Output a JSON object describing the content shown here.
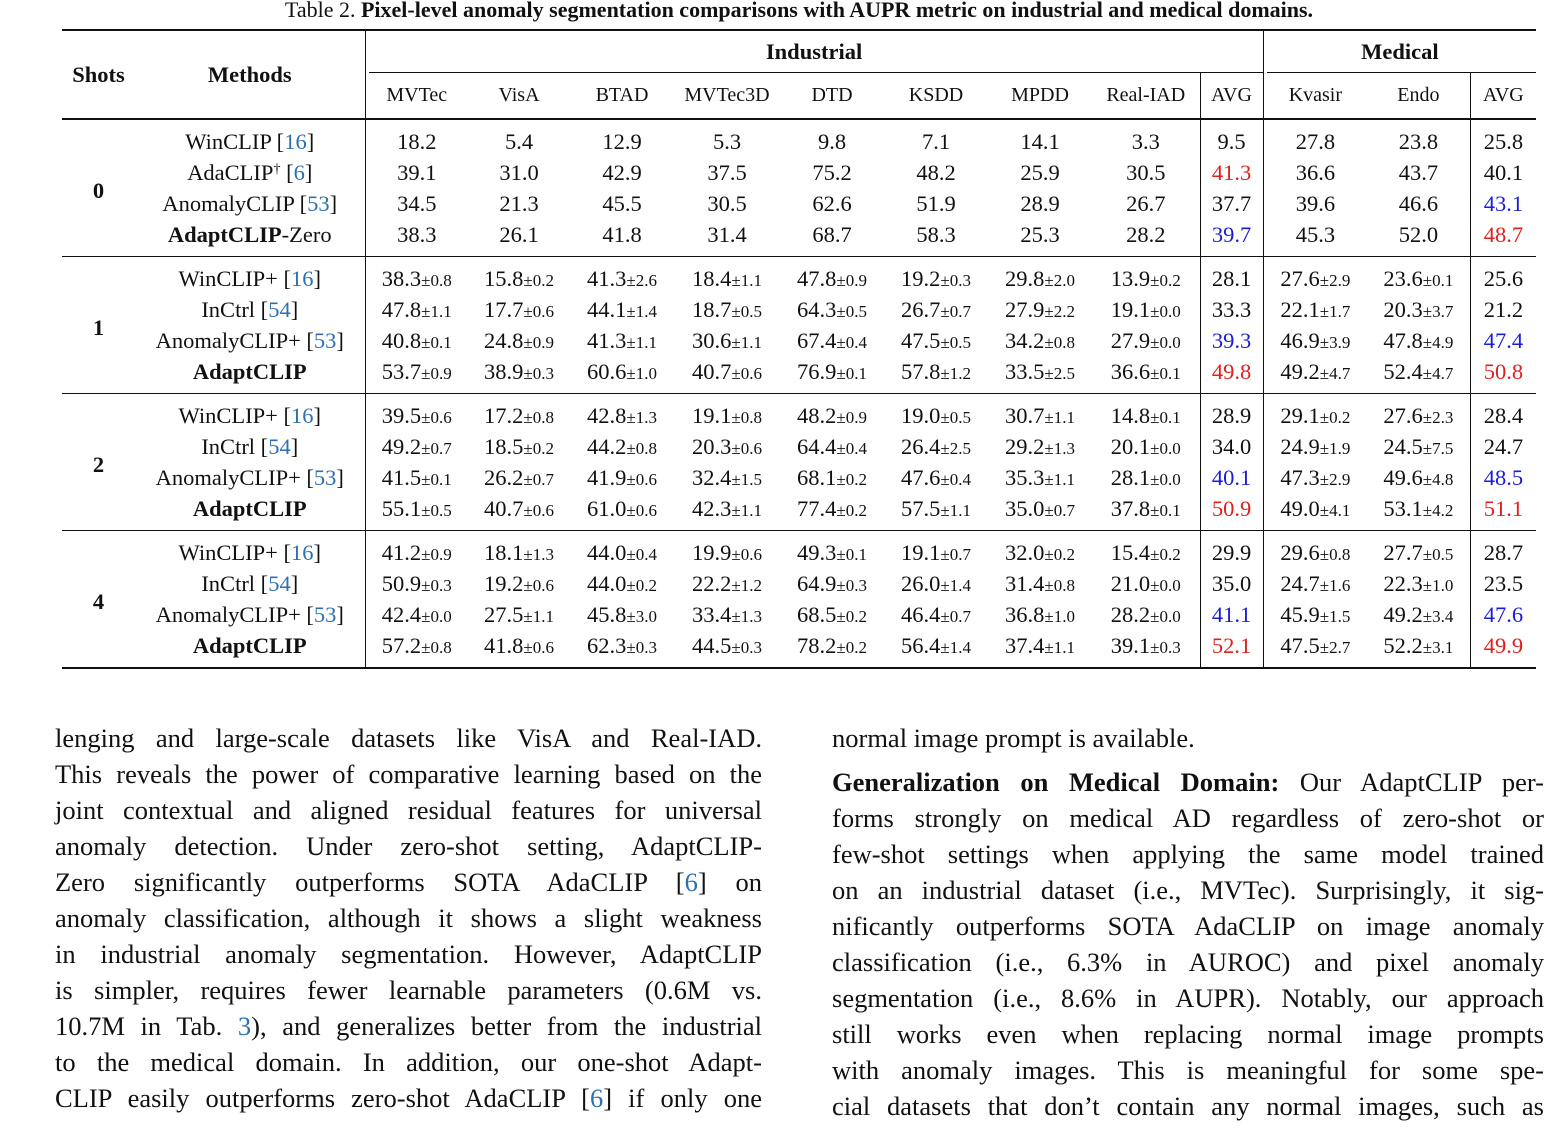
{
  "caption": {
    "label": "Table 2.",
    "title": "Pixel-level anomaly segmentation comparisons with AUPR metric on industrial and medical domains."
  },
  "table": {
    "header": {
      "shots": "Shots",
      "methods": "Methods",
      "groups": [
        {
          "name": "Industrial",
          "columns": [
            "MVTec",
            "VisA",
            "BTAD",
            "MVTec3D",
            "DTD",
            "KSDD",
            "MPDD",
            "Real-IAD",
            "AVG"
          ]
        },
        {
          "name": "Medical",
          "columns": [
            "Kvasir",
            "Endo",
            "AVG"
          ]
        }
      ]
    },
    "blocks": [
      {
        "shots": "0",
        "rows": [
          {
            "method": [
              "WinCLIP [",
              {
                "t": "16",
                "ref": true
              },
              "]"
            ],
            "cells": [
              "18.2",
              "5.4",
              "12.9",
              "5.3",
              "9.8",
              "7.1",
              "14.1",
              "3.3",
              "9.5",
              "27.8",
              "23.8",
              "25.8"
            ]
          },
          {
            "method": [
              "AdaCLIP",
              {
                "t": "†",
                "sup": true
              },
              " [",
              {
                "t": "6",
                "ref": true
              },
              "]"
            ],
            "cells": [
              "39.1",
              "31.0",
              "42.9",
              "37.5",
              "75.2",
              "48.2",
              "25.9",
              "30.5",
              {
                "t": "41.3",
                "color": "#e0201f"
              },
              "36.6",
              "43.7",
              "40.1"
            ]
          },
          {
            "method": [
              "AnomalyCLIP [",
              {
                "t": "53",
                "ref": true
              },
              "]"
            ],
            "cells": [
              "34.5",
              "21.3",
              "45.5",
              "30.5",
              "62.6",
              "51.9",
              "28.9",
              "26.7",
              "37.7",
              "39.6",
              "46.6",
              {
                "t": "43.1",
                "color": "#1c1cd8"
              }
            ]
          },
          {
            "method": [
              {
                "t": "AdaptCLIP",
                "b": true
              },
              "-Zero"
            ],
            "cells": [
              "38.3",
              "26.1",
              "41.8",
              "31.4",
              "68.7",
              "58.3",
              "25.3",
              "28.2",
              {
                "t": "39.7",
                "color": "#1c1cd8"
              },
              "45.3",
              "52.0",
              {
                "t": "48.7",
                "color": "#e0201f"
              }
            ]
          }
        ]
      },
      {
        "shots": "1",
        "rows": [
          {
            "method": [
              "WinCLIP+ [",
              {
                "t": "16",
                "ref": true
              },
              "]"
            ],
            "cells": [
              [
                "38.3",
                "±0.8"
              ],
              [
                "15.8",
                "±0.2"
              ],
              [
                "41.3",
                "±2.6"
              ],
              [
                "18.4",
                "±1.1"
              ],
              [
                "47.8",
                "±0.9"
              ],
              [
                "19.2",
                "±0.3"
              ],
              [
                "29.8",
                "±2.0"
              ],
              [
                "13.9",
                "±0.2"
              ],
              "28.1",
              [
                "27.6",
                "±2.9"
              ],
              [
                "23.6",
                "±0.1"
              ],
              "25.6"
            ]
          },
          {
            "method": [
              "InCtrl [",
              {
                "t": "54",
                "ref": true
              },
              "]"
            ],
            "cells": [
              [
                "47.8",
                "±1.1"
              ],
              [
                "17.7",
                "±0.6"
              ],
              [
                "44.1",
                "±1.4"
              ],
              [
                "18.7",
                "±0.5"
              ],
              [
                "64.3",
                "±0.5"
              ],
              [
                "26.7",
                "±0.7"
              ],
              [
                "27.9",
                "±2.2"
              ],
              [
                "19.1",
                "±0.0"
              ],
              "33.3",
              [
                "22.1",
                "±1.7"
              ],
              [
                "20.3",
                "±3.7"
              ],
              "21.2"
            ]
          },
          {
            "method": [
              "AnomalyCLIP+ [",
              {
                "t": "53",
                "ref": true
              },
              "]"
            ],
            "cells": [
              [
                "40.8",
                "±0.1"
              ],
              [
                "24.8",
                "±0.9"
              ],
              [
                "41.3",
                "±1.1"
              ],
              [
                "30.6",
                "±1.1"
              ],
              [
                "67.4",
                "±0.4"
              ],
              [
                "47.5",
                "±0.5"
              ],
              [
                "34.2",
                "±0.8"
              ],
              [
                "27.9",
                "±0.0"
              ],
              {
                "t": "39.3",
                "color": "#1c1cd8"
              },
              [
                "46.9",
                "±3.9"
              ],
              [
                "47.8",
                "±4.9"
              ],
              {
                "t": "47.4",
                "color": "#1c1cd8"
              }
            ]
          },
          {
            "method": [
              {
                "t": "AdaptCLIP",
                "b": true
              }
            ],
            "cells": [
              [
                "53.7",
                "±0.9"
              ],
              [
                "38.9",
                "±0.3"
              ],
              [
                "60.6",
                "±1.0"
              ],
              [
                "40.7",
                "±0.6"
              ],
              [
                "76.9",
                "±0.1"
              ],
              [
                "57.8",
                "±1.2"
              ],
              [
                "33.5",
                "±2.5"
              ],
              [
                "36.6",
                "±0.1"
              ],
              {
                "t": "49.8",
                "color": "#e0201f"
              },
              [
                "49.2",
                "±4.7"
              ],
              [
                "52.4",
                "±4.7"
              ],
              {
                "t": "50.8",
                "color": "#e0201f"
              }
            ]
          }
        ]
      },
      {
        "shots": "2",
        "rows": [
          {
            "method": [
              "WinCLIP+ [",
              {
                "t": "16",
                "ref": true
              },
              "]"
            ],
            "cells": [
              [
                "39.5",
                "±0.6"
              ],
              [
                "17.2",
                "±0.8"
              ],
              [
                "42.8",
                "±1.3"
              ],
              [
                "19.1",
                "±0.8"
              ],
              [
                "48.2",
                "±0.9"
              ],
              [
                "19.0",
                "±0.5"
              ],
              [
                "30.7",
                "±1.1"
              ],
              [
                "14.8",
                "±0.1"
              ],
              "28.9",
              [
                "29.1",
                "±0.2"
              ],
              [
                "27.6",
                "±2.3"
              ],
              "28.4"
            ]
          },
          {
            "method": [
              "InCtrl [",
              {
                "t": "54",
                "ref": true
              },
              "]"
            ],
            "cells": [
              [
                "49.2",
                "±0.7"
              ],
              [
                "18.5",
                "±0.2"
              ],
              [
                "44.2",
                "±0.8"
              ],
              [
                "20.3",
                "±0.6"
              ],
              [
                "64.4",
                "±0.4"
              ],
              [
                "26.4",
                "±2.5"
              ],
              [
                "29.2",
                "±1.3"
              ],
              [
                "20.1",
                "±0.0"
              ],
              "34.0",
              [
                "24.9",
                "±1.9"
              ],
              [
                "24.5",
                "±7.5"
              ],
              "24.7"
            ]
          },
          {
            "method": [
              "AnomalyCLIP+ [",
              {
                "t": "53",
                "ref": true
              },
              "]"
            ],
            "cells": [
              [
                "41.5",
                "±0.1"
              ],
              [
                "26.2",
                "±0.7"
              ],
              [
                "41.9",
                "±0.6"
              ],
              [
                "32.4",
                "±1.5"
              ],
              [
                "68.1",
                "±0.2"
              ],
              [
                "47.6",
                "±0.4"
              ],
              [
                "35.3",
                "±1.1"
              ],
              [
                "28.1",
                "±0.0"
              ],
              {
                "t": "40.1",
                "color": "#1c1cd8"
              },
              [
                "47.3",
                "±2.9"
              ],
              [
                "49.6",
                "±4.8"
              ],
              {
                "t": "48.5",
                "color": "#1c1cd8"
              }
            ]
          },
          {
            "method": [
              {
                "t": "AdaptCLIP",
                "b": true
              }
            ],
            "cells": [
              [
                "55.1",
                "±0.5"
              ],
              [
                "40.7",
                "±0.6"
              ],
              [
                "61.0",
                "±0.6"
              ],
              [
                "42.3",
                "±1.1"
              ],
              [
                "77.4",
                "±0.2"
              ],
              [
                "57.5",
                "±1.1"
              ],
              [
                "35.0",
                "±0.7"
              ],
              [
                "37.8",
                "±0.1"
              ],
              {
                "t": "50.9",
                "color": "#e0201f"
              },
              [
                "49.0",
                "±4.1"
              ],
              [
                "53.1",
                "±4.2"
              ],
              {
                "t": "51.1",
                "color": "#e0201f"
              }
            ]
          }
        ]
      },
      {
        "shots": "4",
        "rows": [
          {
            "method": [
              "WinCLIP+ [",
              {
                "t": "16",
                "ref": true
              },
              "]"
            ],
            "cells": [
              [
                "41.2",
                "±0.9"
              ],
              [
                "18.1",
                "±1.3"
              ],
              [
                "44.0",
                "±0.4"
              ],
              [
                "19.9",
                "±0.6"
              ],
              [
                "49.3",
                "±0.1"
              ],
              [
                "19.1",
                "±0.7"
              ],
              [
                "32.0",
                "±0.2"
              ],
              [
                "15.4",
                "±0.2"
              ],
              "29.9",
              [
                "29.6",
                "±0.8"
              ],
              [
                "27.7",
                "±0.5"
              ],
              "28.7"
            ]
          },
          {
            "method": [
              "InCtrl [",
              {
                "t": "54",
                "ref": true
              },
              "]"
            ],
            "cells": [
              [
                "50.9",
                "±0.3"
              ],
              [
                "19.2",
                "±0.6"
              ],
              [
                "44.0",
                "±0.2"
              ],
              [
                "22.2",
                "±1.2"
              ],
              [
                "64.9",
                "±0.3"
              ],
              [
                "26.0",
                "±1.4"
              ],
              [
                "31.4",
                "±0.8"
              ],
              [
                "21.0",
                "±0.0"
              ],
              "35.0",
              [
                "24.7",
                "±1.6"
              ],
              [
                "22.3",
                "±1.0"
              ],
              "23.5"
            ]
          },
          {
            "method": [
              "AnomalyCLIP+ [",
              {
                "t": "53",
                "ref": true
              },
              "]"
            ],
            "cells": [
              [
                "42.4",
                "±0.0"
              ],
              [
                "27.5",
                "±1.1"
              ],
              [
                "45.8",
                "±3.0"
              ],
              [
                "33.4",
                "±1.3"
              ],
              [
                "68.5",
                "±0.2"
              ],
              [
                "46.4",
                "±0.7"
              ],
              [
                "36.8",
                "±1.0"
              ],
              [
                "28.2",
                "±0.0"
              ],
              {
                "t": "41.1",
                "color": "#1c1cd8"
              },
              [
                "45.9",
                "±1.5"
              ],
              [
                "49.2",
                "±3.4"
              ],
              {
                "t": "47.6",
                "color": "#1c1cd8"
              }
            ]
          },
          {
            "method": [
              {
                "t": "AdaptCLIP",
                "b": true
              }
            ],
            "cells": [
              [
                "57.2",
                "±0.8"
              ],
              [
                "41.8",
                "±0.6"
              ],
              [
                "62.3",
                "±0.3"
              ],
              [
                "44.5",
                "±0.3"
              ],
              [
                "78.2",
                "±0.2"
              ],
              [
                "56.4",
                "±1.4"
              ],
              [
                "37.4",
                "±1.1"
              ],
              [
                "39.1",
                "±0.3"
              ],
              {
                "t": "52.1",
                "color": "#e0201f"
              },
              [
                "47.5",
                "±2.7"
              ],
              [
                "52.2",
                "±3.1"
              ],
              {
                "t": "49.9",
                "color": "#e0201f"
              }
            ]
          }
        ]
      }
    ]
  },
  "text": {
    "left": [
      {
        "lines": [
          [
            "lenging and large-scale datasets like VisA and Real-IAD."
          ],
          [
            "This reveals the power of comparative learning based on the"
          ],
          [
            "joint contextual and aligned residual features for universal"
          ],
          [
            "anomaly detection.  Under zero-shot setting, AdaptCLIP-"
          ],
          [
            "Zero significantly outperforms SOTA AdaCLIP [",
            {
              "t": "6",
              "ref": true
            },
            "] on"
          ],
          [
            "anomaly classification, although it shows a slight weakness"
          ],
          [
            "in industrial anomaly segmentation. However, AdaptCLIP"
          ],
          [
            "is simpler, requires fewer learnable parameters (0.6M vs."
          ],
          [
            "10.7M in Tab. ",
            {
              "t": "3",
              "ref": true
            },
            "), and generalizes better from the industrial"
          ],
          [
            "to the medical domain.  In addition, our one-shot Adapt-"
          ],
          [
            "CLIP easily outperforms zero-shot AdaCLIP [",
            {
              "t": "6",
              "ref": true
            },
            "] if only one"
          ]
        ]
      }
    ],
    "right": [
      {
        "lines": [
          [
            "normal image prompt is available."
          ]
        ],
        "end": true
      },
      {
        "lines": [
          [
            {
              "t": "Generalization on Medical Domain:",
              "b": true
            },
            " Our AdaptCLIP per-"
          ],
          [
            "forms strongly on medical AD regardless of zero-shot or"
          ],
          [
            "few-shot settings when applying the same model trained"
          ],
          [
            "on an industrial dataset (i.e., MVTec).  Surprisingly, it sig-"
          ],
          [
            "nificantly outperforms SOTA AdaCLIP on image anomaly"
          ],
          [
            "classification (i.e., 6.3% in AUROC) and pixel anomaly"
          ],
          [
            "segmentation (i.e., 8.6% in AUPR). Notably, our approach"
          ],
          [
            "still works even when replacing normal image prompts"
          ],
          [
            "with anomaly images.  This is meaningful for some spe-"
          ],
          [
            "cial datasets that don’t contain any normal images, such as"
          ]
        ]
      }
    ]
  }
}
